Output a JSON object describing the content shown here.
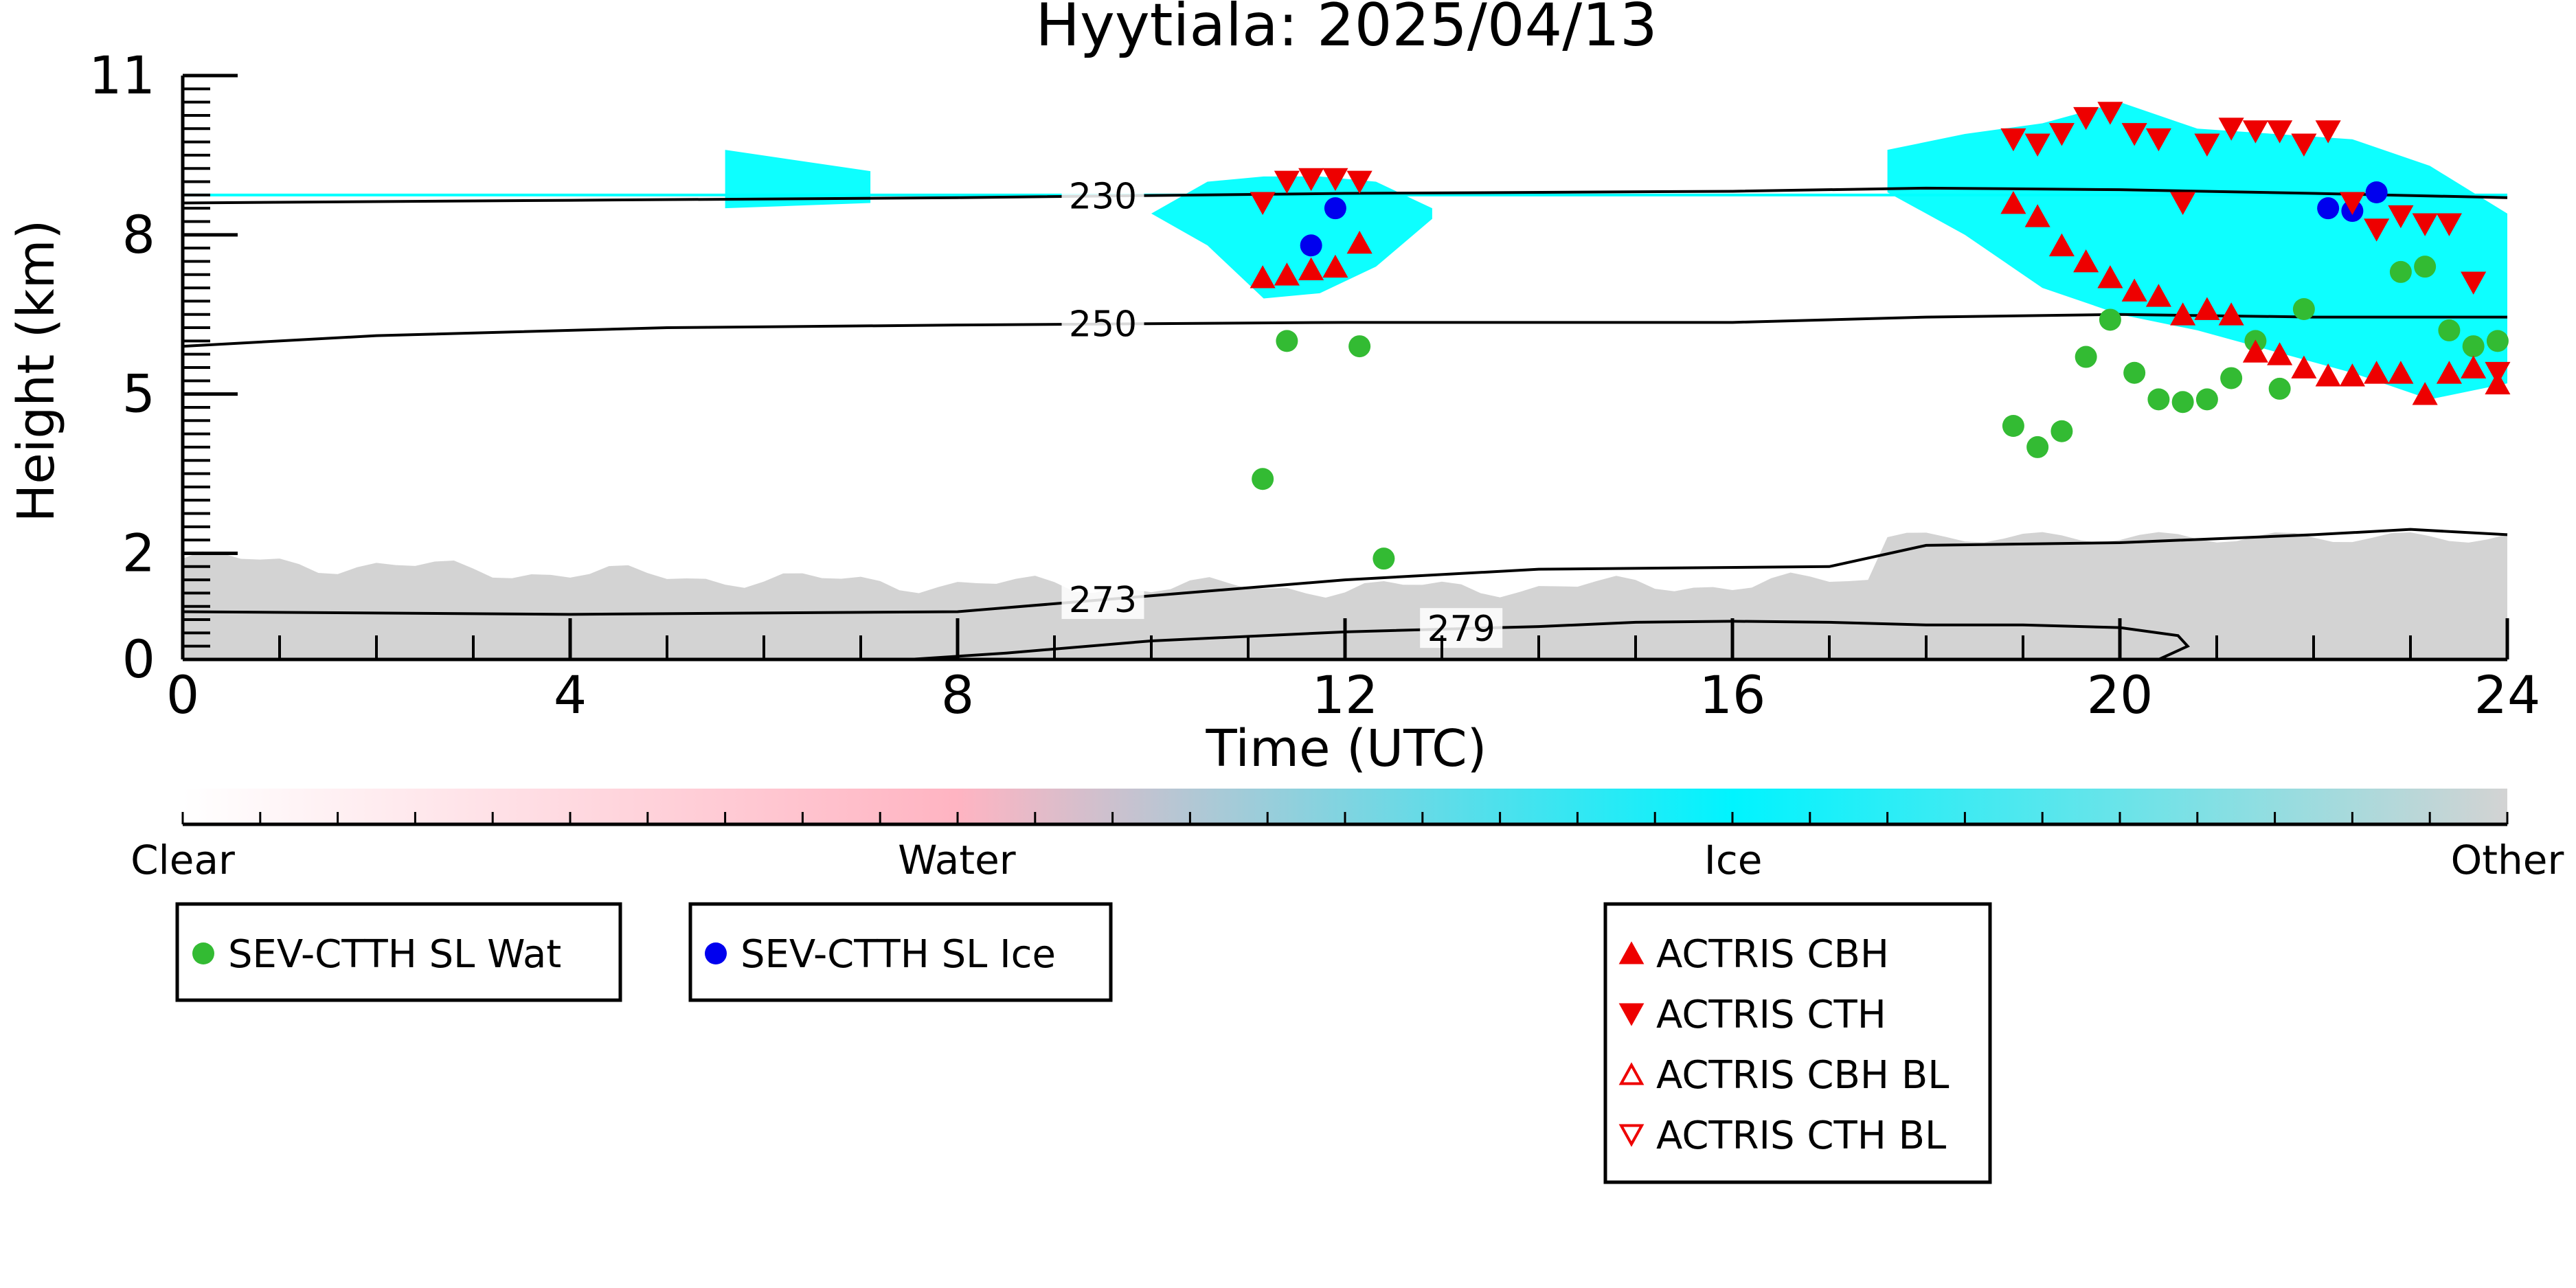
{
  "chart_data": {
    "type": "scatter",
    "title": "Hyytiala: 2025/04/13",
    "xlabel": "Time (UTC)",
    "ylabel": "Height (km)",
    "xlim": [
      0,
      24
    ],
    "ylim": [
      0,
      11
    ],
    "xticks": [
      0,
      4,
      8,
      12,
      16,
      20,
      24
    ],
    "yticks": [
      0,
      2,
      5,
      8,
      11
    ],
    "contours": [
      {
        "label": "230",
        "x": [
          0,
          4,
          8,
          12,
          16,
          18,
          20,
          22,
          24
        ],
        "y": [
          8.6,
          8.65,
          8.7,
          8.78,
          8.82,
          8.88,
          8.85,
          8.78,
          8.7
        ],
        "label_x": 9.5
      },
      {
        "label": "250",
        "x": [
          0,
          2,
          5,
          8,
          12,
          16,
          18,
          20,
          22,
          24
        ],
        "y": [
          5.9,
          6.1,
          6.25,
          6.3,
          6.35,
          6.35,
          6.45,
          6.5,
          6.45,
          6.45
        ],
        "label_x": 9.5
      },
      {
        "label": "273",
        "x": [
          0,
          4,
          8,
          10,
          12,
          14,
          17,
          18,
          20,
          22,
          23,
          24
        ],
        "y": [
          0.9,
          0.85,
          0.9,
          1.2,
          1.5,
          1.7,
          1.75,
          2.15,
          2.2,
          2.35,
          2.45,
          2.35
        ],
        "label_x": 9.5
      },
      {
        "label": "279",
        "x": [
          7.5,
          8.5,
          10,
          12,
          14,
          15,
          16,
          17,
          18,
          19,
          20,
          20.6,
          20.7,
          20.4
        ],
        "y": [
          0,
          0.12,
          0.35,
          0.52,
          0.62,
          0.7,
          0.72,
          0.7,
          0.65,
          0.65,
          0.6,
          0.45,
          0.25,
          0.0
        ],
        "label_x": 13.2
      }
    ],
    "series": [
      {
        "name": "SEV-CTTH SL Wat",
        "marker": "circle",
        "color": "#33bb33",
        "x": [
          11.15,
          11.4,
          12.15,
          12.4,
          18.9,
          19.15,
          19.4,
          19.65,
          19.9,
          20.15,
          20.4,
          20.65,
          20.9,
          21.15,
          21.4,
          21.65,
          21.9,
          22.9,
          23.15,
          23.4,
          23.65,
          23.9
        ],
        "y": [
          3.4,
          6.0,
          5.9,
          1.9,
          4.4,
          4.0,
          4.3,
          5.7,
          6.4,
          5.4,
          4.9,
          4.85,
          4.9,
          5.3,
          6.0,
          5.1,
          6.6,
          7.3,
          7.4,
          6.2,
          5.9,
          6.0
        ]
      },
      {
        "name": "SEV-CTTH SL Ice",
        "marker": "circle",
        "color": "#0000ee",
        "x": [
          11.65,
          11.9,
          22.15,
          22.4,
          22.65
        ],
        "y": [
          7.8,
          8.5,
          8.5,
          8.45,
          8.8
        ]
      },
      {
        "name": "ACTRIS CBH",
        "marker": "triangle-up",
        "color": "#ee0000",
        "x": [
          11.15,
          11.4,
          11.65,
          11.9,
          12.15,
          18.9,
          19.15,
          19.4,
          19.65,
          19.9,
          20.15,
          20.4,
          20.65,
          20.9,
          21.15,
          21.4,
          21.65,
          21.9,
          22.15,
          22.4,
          22.65,
          22.9,
          23.15,
          23.4,
          23.65,
          23.9
        ],
        "y": [
          7.2,
          7.25,
          7.35,
          7.4,
          7.85,
          8.6,
          8.35,
          7.8,
          7.5,
          7.2,
          6.95,
          6.85,
          6.5,
          6.6,
          6.5,
          5.8,
          5.75,
          5.5,
          5.35,
          5.35,
          5.4,
          5.4,
          5.0,
          5.4,
          5.5,
          5.2
        ],
        "filled": true
      },
      {
        "name": "ACTRIS CTH",
        "marker": "triangle-down",
        "color": "#ee0000",
        "x": [
          11.15,
          11.4,
          11.65,
          11.9,
          12.15,
          18.9,
          19.15,
          19.4,
          19.65,
          19.9,
          20.15,
          20.4,
          20.65,
          20.9,
          21.15,
          21.4,
          21.65,
          21.9,
          22.15,
          22.4,
          22.65,
          22.9,
          23.15,
          23.4,
          23.65,
          23.9
        ],
        "y": [
          8.6,
          9.0,
          9.05,
          9.05,
          9.0,
          9.8,
          9.7,
          9.9,
          10.2,
          10.3,
          9.9,
          9.8,
          8.6,
          9.7,
          10.0,
          9.95,
          9.95,
          9.7,
          9.95,
          8.6,
          8.1,
          8.35,
          8.2,
          8.2,
          7.1,
          5.4
        ],
        "filled": true
      },
      {
        "name": "ACTRIS CBH BL",
        "marker": "triangle-up",
        "color": "#ee0000",
        "x": [],
        "y": [],
        "filled": false
      },
      {
        "name": "ACTRIS CTH BL",
        "marker": "triangle-down",
        "color": "#ee0000",
        "x": [],
        "y": [],
        "filled": false
      }
    ],
    "cloud_regions": [
      {
        "type": "ice",
        "x0": 10.0,
        "x1": 12.9,
        "y_top": [
          8.4,
          9.0,
          9.1,
          9.1,
          9.0,
          8.5
        ],
        "y_bot": [
          8.4,
          7.8,
          6.8,
          6.9,
          7.4,
          8.3
        ]
      },
      {
        "type": "ice",
        "x0": 17.6,
        "x1": 24.0,
        "y_top": [
          9.6,
          9.9,
          10.1,
          10.5,
          10.0,
          9.9,
          9.8,
          9.3,
          8.4
        ],
        "y_bot": [
          8.8,
          8.0,
          7.0,
          6.5,
          6.2,
          5.8,
          5.4,
          4.9,
          5.2
        ]
      },
      {
        "type": "ice",
        "x0": 5.6,
        "x1": 7.1,
        "y_top": [
          9.6,
          9.2
        ],
        "y_bot": [
          8.5,
          8.6
        ]
      }
    ],
    "colorbar": {
      "labels": [
        "Clear",
        "Water",
        "Ice",
        "Other"
      ],
      "stops": [
        "#ffffff",
        "#ffb4c2",
        "#00f4ff",
        "#d3d3d3"
      ]
    },
    "colors": {
      "ice": "#00ffff",
      "other": "#d3d3d3",
      "water": "#ffb6c1"
    },
    "legend_placement": "below"
  }
}
